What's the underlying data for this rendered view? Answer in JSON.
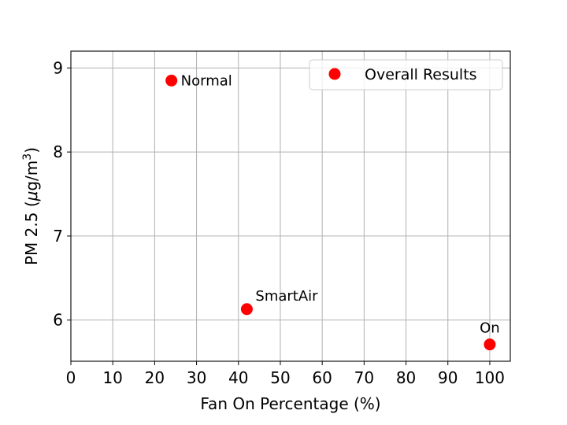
{
  "chart_data": {
    "type": "scatter",
    "title": "",
    "xlabel": "Fan On Percentage (%)",
    "ylabel": "PM 2.5 (μg/m³)",
    "ylabel_parts": {
      "main": "PM 2.5 (",
      "mu": "μ",
      "unit": "g/m",
      "sup": "3",
      "close": ")"
    },
    "xlim": [
      0,
      105
    ],
    "ylim": [
      5.5,
      9.2
    ],
    "xticks": [
      0,
      10,
      20,
      30,
      40,
      50,
      60,
      70,
      80,
      90,
      100
    ],
    "xtick_labels": [
      "0",
      "10",
      "20",
      "30",
      "40",
      "50",
      "60",
      "70",
      "80",
      "90",
      "100"
    ],
    "yticks": [
      6,
      7,
      8,
      9
    ],
    "ytick_labels": [
      "6",
      "7",
      "8",
      "9"
    ],
    "grid": true,
    "legend": {
      "position": "upper right",
      "entries": [
        "Overall Results"
      ]
    },
    "series": [
      {
        "name": "Overall Results",
        "color": "#ff0000",
        "points": [
          {
            "label": "Normal",
            "x": 24,
            "y": 8.85
          },
          {
            "label": "SmartAir",
            "x": 42,
            "y": 6.13
          },
          {
            "label": "On",
            "x": 100,
            "y": 5.71
          }
        ]
      }
    ]
  },
  "legend": {
    "label": "Overall Results"
  },
  "colors": {
    "marker": "#ff0000",
    "grid": "#b0b0b0",
    "axes": "#000000"
  }
}
